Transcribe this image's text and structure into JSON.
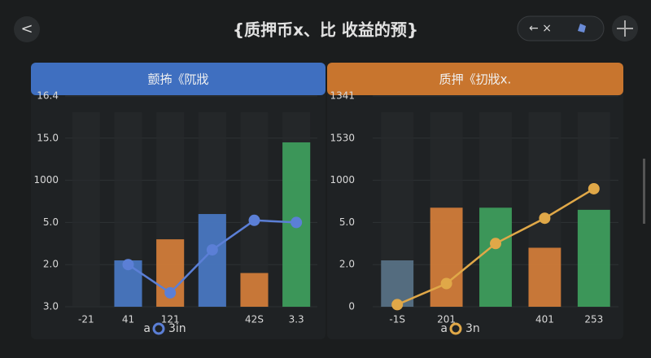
{
  "header": {
    "title": "{质押币x、比 收益的预}",
    "back": "<",
    "pill": "← ×"
  },
  "chart_data": [
    {
      "type": "bar",
      "title": "颤抪《阢戕",
      "categories": [
        "-21",
        "41",
        "121",
        null,
        "42S",
        "3.3"
      ],
      "series": [
        {
          "name": "a",
          "type": "bar",
          "colors": [
            "#4a7bc8",
            "#4a7bc8",
            "#d9813a",
            "#4a7bc8",
            "#d9813a",
            "#3fa35e"
          ],
          "values": [
            null,
            1.1,
            1.6,
            2.2,
            0.8,
            3.9
          ]
        },
        {
          "name": "3in",
          "type": "line",
          "color": "#5b7fd6",
          "values": [
            null,
            1.0,
            0.33,
            1.35,
            2.05,
            2.0
          ]
        }
      ],
      "ylim": [
        0,
        5
      ],
      "yticks": [
        {
          "value": 0,
          "label": "3.0"
        },
        {
          "value": 1,
          "label": "2.0"
        },
        {
          "value": 2,
          "label": "5.0"
        },
        {
          "value": 3,
          "label": "1000"
        },
        {
          "value": 4,
          "label": "15.0"
        },
        {
          "value": 5,
          "label": "16.4"
        }
      ],
      "header_color": "#3f6fc0",
      "grid": true
    },
    {
      "type": "bar",
      "title": "质押《㧅戕x.",
      "categories": [
        "-1S",
        "201",
        null,
        "401",
        "253"
      ],
      "series": [
        {
          "name": "a",
          "type": "bar",
          "colors": [
            "#5a7488",
            "#d9813a",
            "#3fa35e",
            "#d9813a",
            "#3fa35e"
          ],
          "values": [
            1.1,
            2.35,
            2.35,
            1.4,
            2.3
          ]
        },
        {
          "name": "3n",
          "type": "line",
          "color": "#e0a848",
          "values": [
            0.05,
            0.55,
            1.5,
            2.1,
            2.8
          ]
        }
      ],
      "ylim": [
        0,
        5
      ],
      "yticks": [
        0,
        {
          "value": 1,
          "label": "2.0"
        },
        {
          "value": 2,
          "label": "5.0"
        },
        {
          "value": 3,
          "label": "1000"
        },
        {
          "value": 4,
          "label": "1530"
        },
        {
          "value": 5,
          "label": "1341"
        }
      ],
      "header_color": "#c8752e",
      "grid": true
    }
  ]
}
